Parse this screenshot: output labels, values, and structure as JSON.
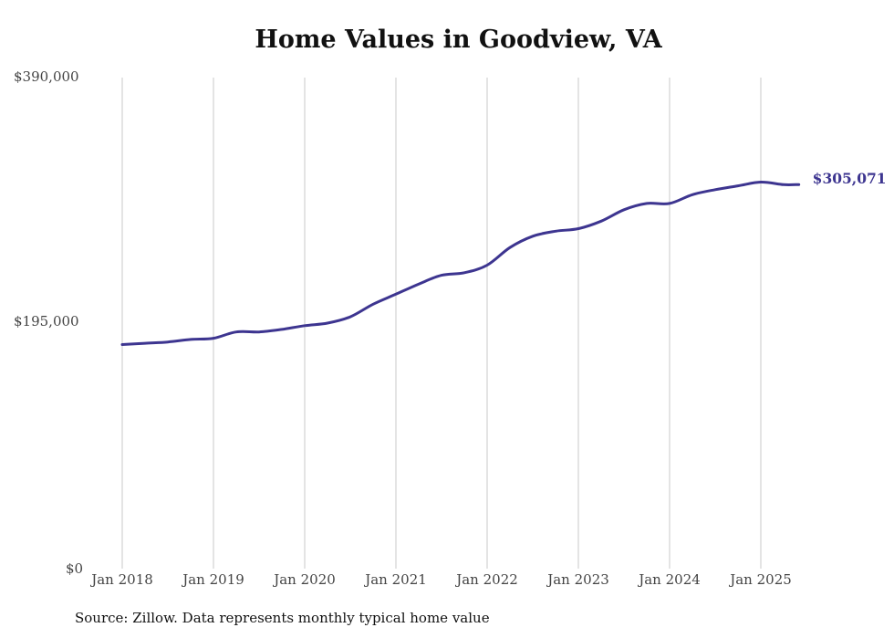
{
  "chart_data": {
    "type": "line",
    "title": "Home Values in Goodview, VA",
    "y_tick_labels": [
      "$390,000",
      "$195,000",
      "$0"
    ],
    "x_tick_labels": [
      "Jan 2018",
      "Jan 2019",
      "Jan 2020",
      "Jan 2021",
      "Jan 2022",
      "Jan 2023",
      "Jan 2024",
      "Jan 2025"
    ],
    "ylim": [
      0,
      390000
    ],
    "grid": "vertical",
    "end_label": "$305,071",
    "line_color": "#3d3590",
    "series": [
      {
        "x": [
          "2018-01",
          "2018-04",
          "2018-07",
          "2018-10",
          "2019-01",
          "2019-04",
          "2019-07",
          "2019-10",
          "2020-01",
          "2020-04",
          "2020-07",
          "2020-10",
          "2021-01",
          "2021-04",
          "2021-07",
          "2021-10",
          "2022-01",
          "2022-04",
          "2022-07",
          "2022-10",
          "2023-01",
          "2023-04",
          "2023-07",
          "2023-10",
          "2024-01",
          "2024-04",
          "2024-07",
          "2024-10",
          "2025-01",
          "2025-04",
          "2025-06"
        ],
        "values": [
          178000,
          179000,
          180000,
          182000,
          183000,
          188000,
          188000,
          190000,
          193000,
          195000,
          200000,
          210000,
          218000,
          226000,
          233000,
          235000,
          241000,
          255000,
          264000,
          268000,
          270000,
          276000,
          285000,
          290000,
          290000,
          297000,
          301000,
          304000,
          307000,
          305000,
          305071
        ]
      }
    ]
  },
  "source": "Source: Zillow. Data represents monthly typical home value"
}
